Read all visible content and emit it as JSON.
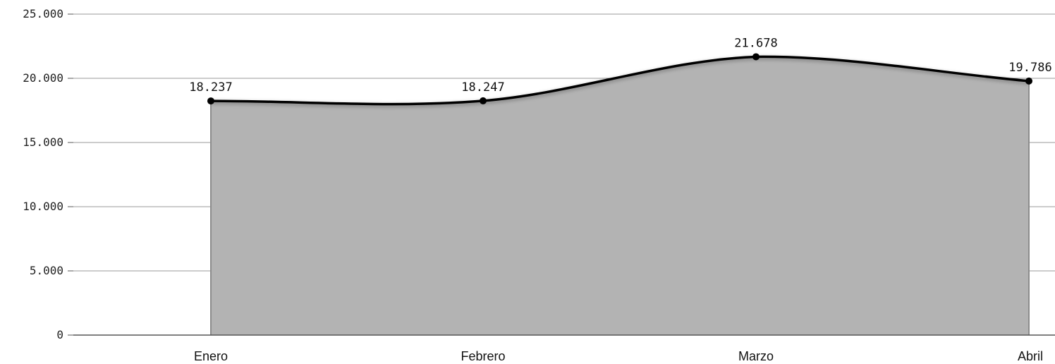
{
  "chart_data": {
    "type": "area",
    "title": "",
    "xlabel": "",
    "ylabel": "",
    "categories": [
      "Enero",
      "Febrero",
      "Marzo",
      "Abril"
    ],
    "series": [
      {
        "values": [
          18237,
          18247,
          21678,
          19786
        ],
        "data_labels": [
          "18.237",
          "18.247",
          "21.678",
          "19.786"
        ]
      }
    ],
    "ylim": [
      0,
      25000
    ],
    "yticks": [
      0,
      5000,
      10000,
      15000,
      20000,
      25000
    ],
    "ytick_labels": [
      "0",
      "5.000",
      "10.000",
      "15.000",
      "20.000",
      "25.000"
    ],
    "grid": true,
    "legend": "none",
    "smooth": true,
    "colors": {
      "area_fill": "#b3b3b3",
      "line": "#000000",
      "grid": "#9a9a9a",
      "axis": "#555555"
    }
  }
}
